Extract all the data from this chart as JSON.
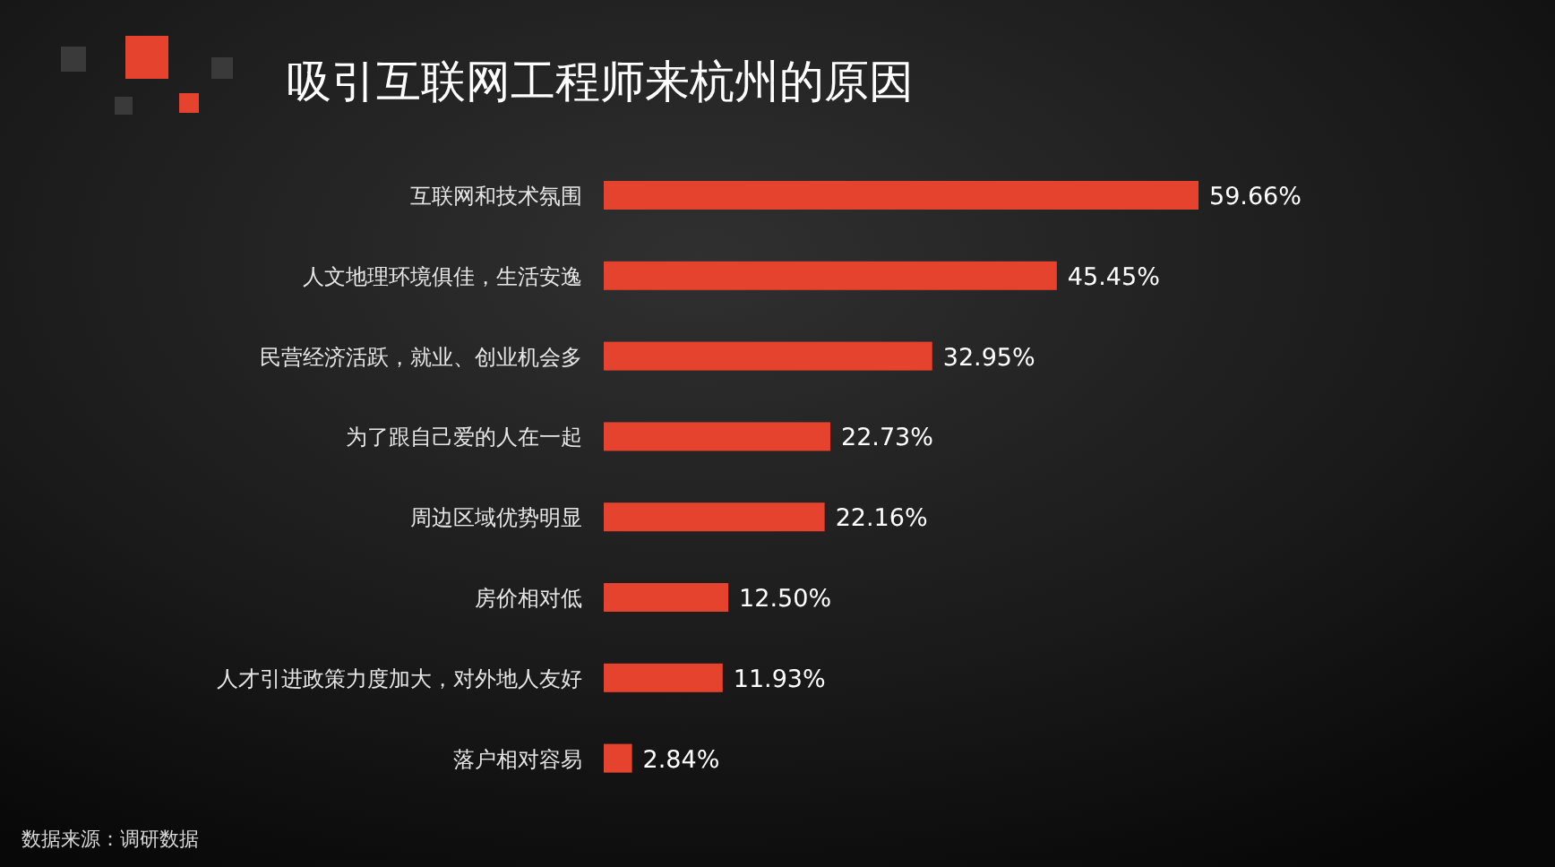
{
  "chart_data": {
    "type": "bar",
    "orientation": "horizontal",
    "title": "吸引互联网工程师来杭州的原因",
    "categories": [
      "互联网和技术氛围",
      "人文地理环境俱佳，生活安逸",
      "民营经济活跃，就业、创业机会多",
      "为了跟自己爱的人在一起",
      "周边区域优势明显",
      "房价相对低",
      "人才引进政策力度加大，对外地人友好",
      "落户相对容易"
    ],
    "values": [
      59.66,
      45.45,
      32.95,
      22.73,
      22.16,
      12.5,
      11.93,
      2.84
    ],
    "value_labels": [
      "59.66%",
      "45.45%",
      "32.95%",
      "22.73%",
      "22.16%",
      "12.50%",
      "11.93%",
      "2.84%"
    ],
    "color": "#e5432d",
    "annotations": [
      "数据来源：调研数据"
    ]
  }
}
